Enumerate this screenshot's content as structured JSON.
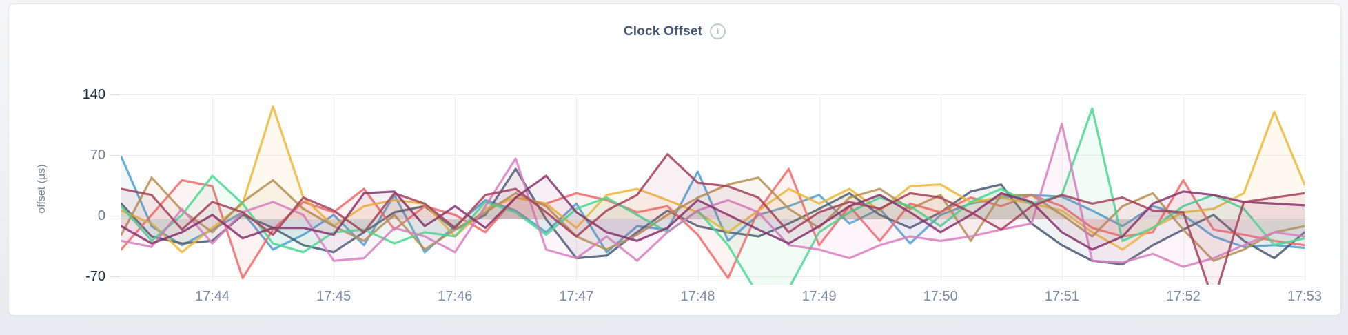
{
  "card": {
    "title": "Clock Offset",
    "info_icon_glyph": "i"
  },
  "chart_data": {
    "type": "line",
    "title": "Clock Offset",
    "xlabel": "",
    "ylabel": "offset (µs)",
    "y_ticks": [
      140,
      70,
      0,
      -70
    ],
    "y_tick_emphasis": [
      140,
      -70
    ],
    "ylim": [
      -75,
      145
    ],
    "x_ticks": [
      "17:44",
      "17:45",
      "17:46",
      "17:47",
      "17:48",
      "17:49",
      "17:50",
      "17:51",
      "17:52",
      "17:53"
    ],
    "x_tick_interval": "1 minute",
    "sample_interval_seconds": 15,
    "points_per_series": 40,
    "first_tick_point_index": 3,
    "points_per_tick": 4,
    "grid": true,
    "legend": "none",
    "line_opacity": 0.85,
    "fill_opacity": 0.08,
    "series": [
      {
        "name": "sky-blue",
        "color": "#4E9FD1",
        "values": [
          72,
          -8,
          -30,
          -12,
          8,
          -35,
          -18,
          5,
          -30,
          28,
          -38,
          -8,
          22,
          10,
          -15,
          18,
          -38,
          -8,
          -12,
          55,
          -25,
          5,
          15,
          28,
          -5,
          12,
          -28,
          5,
          18,
          25,
          28,
          26,
          10,
          -8,
          15,
          5,
          -20,
          -32,
          -30,
          -33
        ]
      },
      {
        "name": "slate-blue",
        "color": "#475872",
        "values": [
          18,
          -20,
          -28,
          -25,
          5,
          -10,
          -30,
          -38,
          -15,
          8,
          15,
          -12,
          5,
          58,
          0,
          -45,
          -42,
          -15,
          10,
          -8,
          -15,
          -20,
          -5,
          12,
          30,
          5,
          -10,
          8,
          32,
          40,
          -5,
          -30,
          -48,
          -52,
          -30,
          -12,
          5,
          -25,
          -45,
          -15
        ]
      },
      {
        "name": "salmon",
        "color": "#F16969",
        "values": [
          -35,
          5,
          45,
          38,
          -68,
          -12,
          20,
          8,
          35,
          -12,
          15,
          5,
          -15,
          25,
          18,
          30,
          22,
          8,
          15,
          -18,
          -68,
          10,
          58,
          -30,
          15,
          -25,
          18,
          8,
          25,
          15,
          28,
          15,
          -10,
          -20,
          -15,
          45,
          -12,
          -18,
          -25,
          -30
        ]
      },
      {
        "name": "gold",
        "color": "#EDB738",
        "values": [
          10,
          -5,
          -38,
          -10,
          18,
          130,
          25,
          -8,
          15,
          22,
          18,
          -20,
          12,
          25,
          18,
          -10,
          28,
          35,
          22,
          8,
          -15,
          10,
          35,
          18,
          35,
          10,
          38,
          40,
          20,
          25,
          18,
          10,
          -15,
          -35,
          -10,
          8,
          12,
          30,
          124,
          40
        ]
      },
      {
        "name": "khaki",
        "color": "#B59153",
        "values": [
          -18,
          48,
          10,
          -15,
          20,
          45,
          12,
          -8,
          -25,
          5,
          -35,
          -12,
          8,
          30,
          15,
          -20,
          -35,
          -18,
          5,
          25,
          40,
          48,
          12,
          -10,
          25,
          35,
          12,
          28,
          -25,
          28,
          28,
          5,
          -20,
          15,
          30,
          -12,
          -48,
          -35,
          -15,
          -8
        ]
      },
      {
        "name": "mint-green",
        "color": "#49D990",
        "values": [
          15,
          -25,
          5,
          50,
          18,
          -28,
          -38,
          -15,
          -12,
          -28,
          -15,
          -20,
          20,
          8,
          -18,
          12,
          25,
          5,
          -15,
          10,
          -30,
          -88,
          -80,
          -15,
          8,
          25,
          15,
          -8,
          20,
          35,
          18,
          28,
          128,
          -25,
          -10,
          15,
          28,
          12,
          -30,
          -22
        ]
      },
      {
        "name": "orchid-pink",
        "color": "#D77FBF",
        "values": [
          -25,
          -32,
          12,
          -28,
          8,
          20,
          5,
          -48,
          -45,
          -10,
          -20,
          -38,
          15,
          70,
          -35,
          -45,
          -20,
          -48,
          -15,
          10,
          22,
          8,
          -30,
          -35,
          -45,
          -30,
          -20,
          -25,
          -20,
          -12,
          -5,
          110,
          -48,
          -50,
          -40,
          -55,
          -45,
          -30,
          -15,
          -20
        ]
      },
      {
        "name": "dark-magenta",
        "color": "#87326D",
        "values": [
          -8,
          -28,
          -15,
          5,
          -22,
          -10,
          -10,
          -18,
          30,
          32,
          -8,
          15,
          -10,
          25,
          50,
          8,
          -15,
          -25,
          -10,
          22,
          5,
          -12,
          -28,
          -8,
          15,
          28,
          8,
          -15,
          5,
          30,
          20,
          -15,
          -35,
          -20,
          18,
          32,
          28,
          20,
          18,
          16
        ]
      },
      {
        "name": "maroon",
        "color": "#A3415B",
        "values": [
          35,
          28,
          -12,
          20,
          8,
          -18,
          25,
          10,
          -15,
          30,
          18,
          -10,
          28,
          35,
          8,
          -20,
          10,
          28,
          75,
          42,
          38,
          25,
          -15,
          8,
          20,
          12,
          30,
          25,
          8,
          -12,
          15,
          28,
          18,
          25,
          10,
          8,
          -95,
          20,
          25,
          30
        ]
      }
    ]
  }
}
